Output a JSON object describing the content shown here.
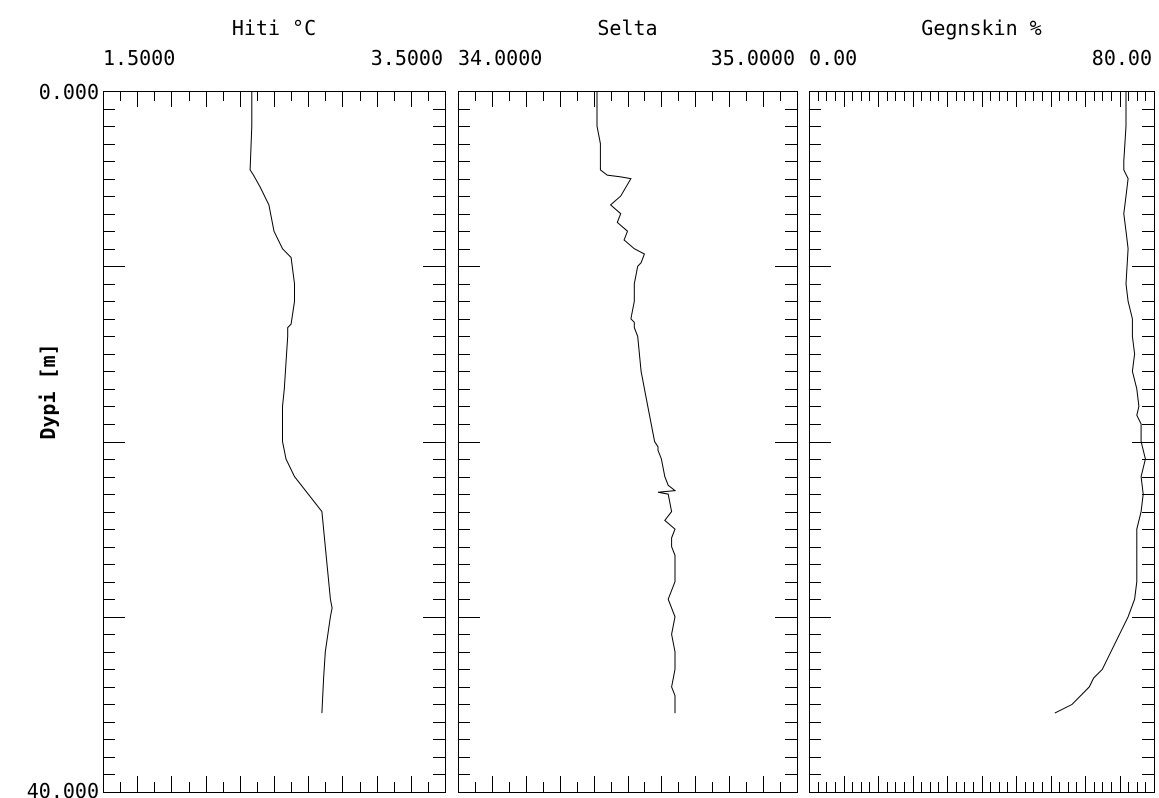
{
  "chart_data": [
    {
      "type": "line",
      "title": "Hiti °C",
      "xlim": [
        1.5,
        3.5
      ],
      "x_tick_labels": [
        "1.5000",
        "3.5000"
      ],
      "ylim": [
        0,
        40
      ],
      "y_tick_labels": [
        "0.000",
        "40.000"
      ],
      "ylabel": "Dypi [m]",
      "minor_ticks": 20,
      "major_y_ticks": 4,
      "grid": false,
      "series": [
        {
          "x": [
            2.37,
            2.37,
            2.36,
            2.38,
            2.42,
            2.47,
            2.5,
            2.55,
            2.6,
            2.62,
            2.62,
            2.6,
            2.58,
            2.58,
            2.57,
            2.56,
            2.55,
            2.55,
            2.55,
            2.57,
            2.62,
            2.7,
            2.78,
            2.8,
            2.82,
            2.83,
            2.84,
            2.83,
            2.8,
            2.79,
            2.78
          ],
          "y": [
            0,
            2.0,
            4.5,
            4.8,
            5.5,
            6.5,
            8.0,
            9.0,
            9.5,
            11.0,
            12.0,
            13.3,
            13.5,
            14.0,
            15.5,
            17.0,
            18.0,
            19.0,
            20.0,
            21.0,
            22.0,
            23.0,
            24.0,
            26.0,
            28.0,
            29.0,
            29.5,
            30.0,
            32.0,
            33.5,
            35.5
          ]
        }
      ]
    },
    {
      "type": "line",
      "title": "Selta",
      "xlim": [
        34.0,
        35.0
      ],
      "x_tick_labels": [
        "34.0000",
        "35.0000"
      ],
      "ylim": [
        0,
        40
      ],
      "minor_ticks": 20,
      "major_y_ticks": 4,
      "grid": false,
      "series": [
        {
          "x": [
            34.41,
            34.41,
            34.42,
            34.42,
            34.42,
            34.44,
            34.48,
            34.51,
            34.48,
            34.45,
            34.48,
            34.47,
            34.5,
            34.49,
            34.52,
            34.55,
            34.54,
            34.53,
            34.52,
            34.52,
            34.51,
            34.52,
            34.52,
            34.53,
            34.54,
            34.56,
            34.57,
            34.58,
            34.59,
            34.59,
            34.6,
            34.61,
            34.62,
            34.64,
            34.59,
            34.62,
            34.63,
            34.61,
            34.64,
            34.63,
            34.63,
            34.64,
            34.64,
            34.64,
            34.62,
            34.64,
            34.63,
            34.64,
            34.64,
            34.63,
            34.64,
            34.64
          ],
          "y": [
            0,
            2.0,
            3.0,
            4.0,
            4.5,
            4.8,
            4.9,
            5.0,
            6.0,
            6.5,
            7.0,
            7.5,
            8.0,
            8.5,
            9.0,
            9.3,
            9.8,
            10.0,
            11.0,
            12.0,
            13.0,
            13.2,
            13.5,
            14.0,
            16.0,
            18.0,
            19.0,
            20.0,
            20.3,
            20.5,
            21.0,
            22.0,
            22.5,
            22.8,
            22.9,
            23.0,
            24.0,
            24.5,
            25.0,
            25.5,
            26.0,
            26.5,
            27.0,
            28.0,
            29.0,
            30.0,
            31.0,
            32.0,
            33.0,
            34.0,
            34.5,
            35.5
          ]
        }
      ]
    },
    {
      "type": "line",
      "title": "Gegnskin %",
      "xlim": [
        0,
        80
      ],
      "x_tick_labels": [
        "0.00",
        "80.00"
      ],
      "ylim": [
        0,
        40
      ],
      "minor_ticks": 40,
      "major_y_ticks": 4,
      "grid": false,
      "series": [
        {
          "x": [
            73.5,
            73.5,
            73.0,
            73.0,
            74.0,
            73.5,
            73.0,
            73.5,
            74.0,
            73.5,
            74.0,
            75.0,
            75.0,
            75.5,
            75.0,
            76.0,
            76.5,
            76.0,
            77.0,
            77.0,
            78.0,
            77.0,
            77.5,
            77.0,
            76.0,
            76.0,
            76.0,
            75.5,
            74.0,
            72.0,
            70.0,
            68.0,
            66.0,
            65.0,
            61.0,
            57.0
          ],
          "y": [
            0,
            2.0,
            4.0,
            4.5,
            5.0,
            6.0,
            7.0,
            8.0,
            9.0,
            11.0,
            12.0,
            13.0,
            14.0,
            15.0,
            16.0,
            17.0,
            18.0,
            18.5,
            19.0,
            20.0,
            21.0,
            22.0,
            23.0,
            24.0,
            25.0,
            26.0,
            28.0,
            29.0,
            30.0,
            31.0,
            32.0,
            33.0,
            33.5,
            34.0,
            35.0,
            35.5
          ]
        }
      ]
    }
  ]
}
